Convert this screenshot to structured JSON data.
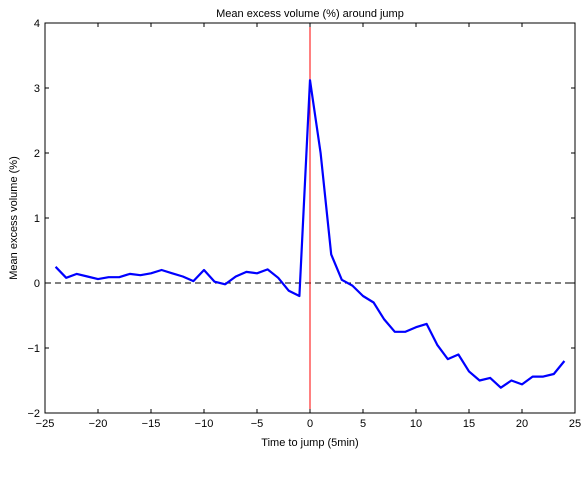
{
  "chart_data": {
    "type": "line",
    "title": "Mean excess volume (%) around jump",
    "xlabel": "Time to jump (5min)",
    "ylabel": "Mean excess volume (%)",
    "xlim": [
      -25,
      25
    ],
    "ylim": [
      -2,
      4
    ],
    "xticks": [
      -25,
      -20,
      -15,
      -10,
      -5,
      0,
      5,
      10,
      15,
      20,
      25
    ],
    "yticks": [
      -2,
      -1,
      0,
      1,
      2,
      3,
      4
    ],
    "grid": false,
    "series": [
      {
        "color": "#0000ff",
        "x": [
          -24,
          -23,
          -22,
          -21,
          -20,
          -19,
          -18,
          -17,
          -16,
          -15,
          -14,
          -13,
          -12,
          -11,
          -10,
          -9,
          -8,
          -7,
          -6,
          -5,
          -4,
          -3,
          -2,
          -1,
          0,
          1,
          2,
          3,
          4,
          5,
          6,
          7,
          8,
          9,
          10,
          11,
          12,
          13,
          14,
          15,
          16,
          17,
          18,
          19,
          20,
          21,
          22,
          23,
          24
        ],
        "values": [
          0.25,
          0.08,
          0.14,
          0.1,
          0.06,
          0.09,
          0.09,
          0.14,
          0.12,
          0.15,
          0.2,
          0.15,
          0.1,
          0.03,
          0.2,
          0.02,
          -0.02,
          0.1,
          0.17,
          0.15,
          0.21,
          0.08,
          -0.12,
          -0.2,
          3.12,
          2.0,
          0.44,
          0.05,
          -0.04,
          -0.2,
          -0.3,
          -0.56,
          -0.75,
          -0.75,
          -0.68,
          -0.63,
          -0.95,
          -1.17,
          -1.1,
          -1.36,
          -1.5,
          -1.46,
          -1.61,
          -1.5,
          -1.56,
          -1.44,
          -1.44,
          -1.4,
          -1.2
        ]
      }
    ],
    "reference_lines": [
      {
        "orientation": "horizontal",
        "value": 0,
        "style": "dashed",
        "color": "#000000"
      },
      {
        "orientation": "vertical",
        "value": 0,
        "style": "solid",
        "color": "#ff0000"
      }
    ]
  }
}
